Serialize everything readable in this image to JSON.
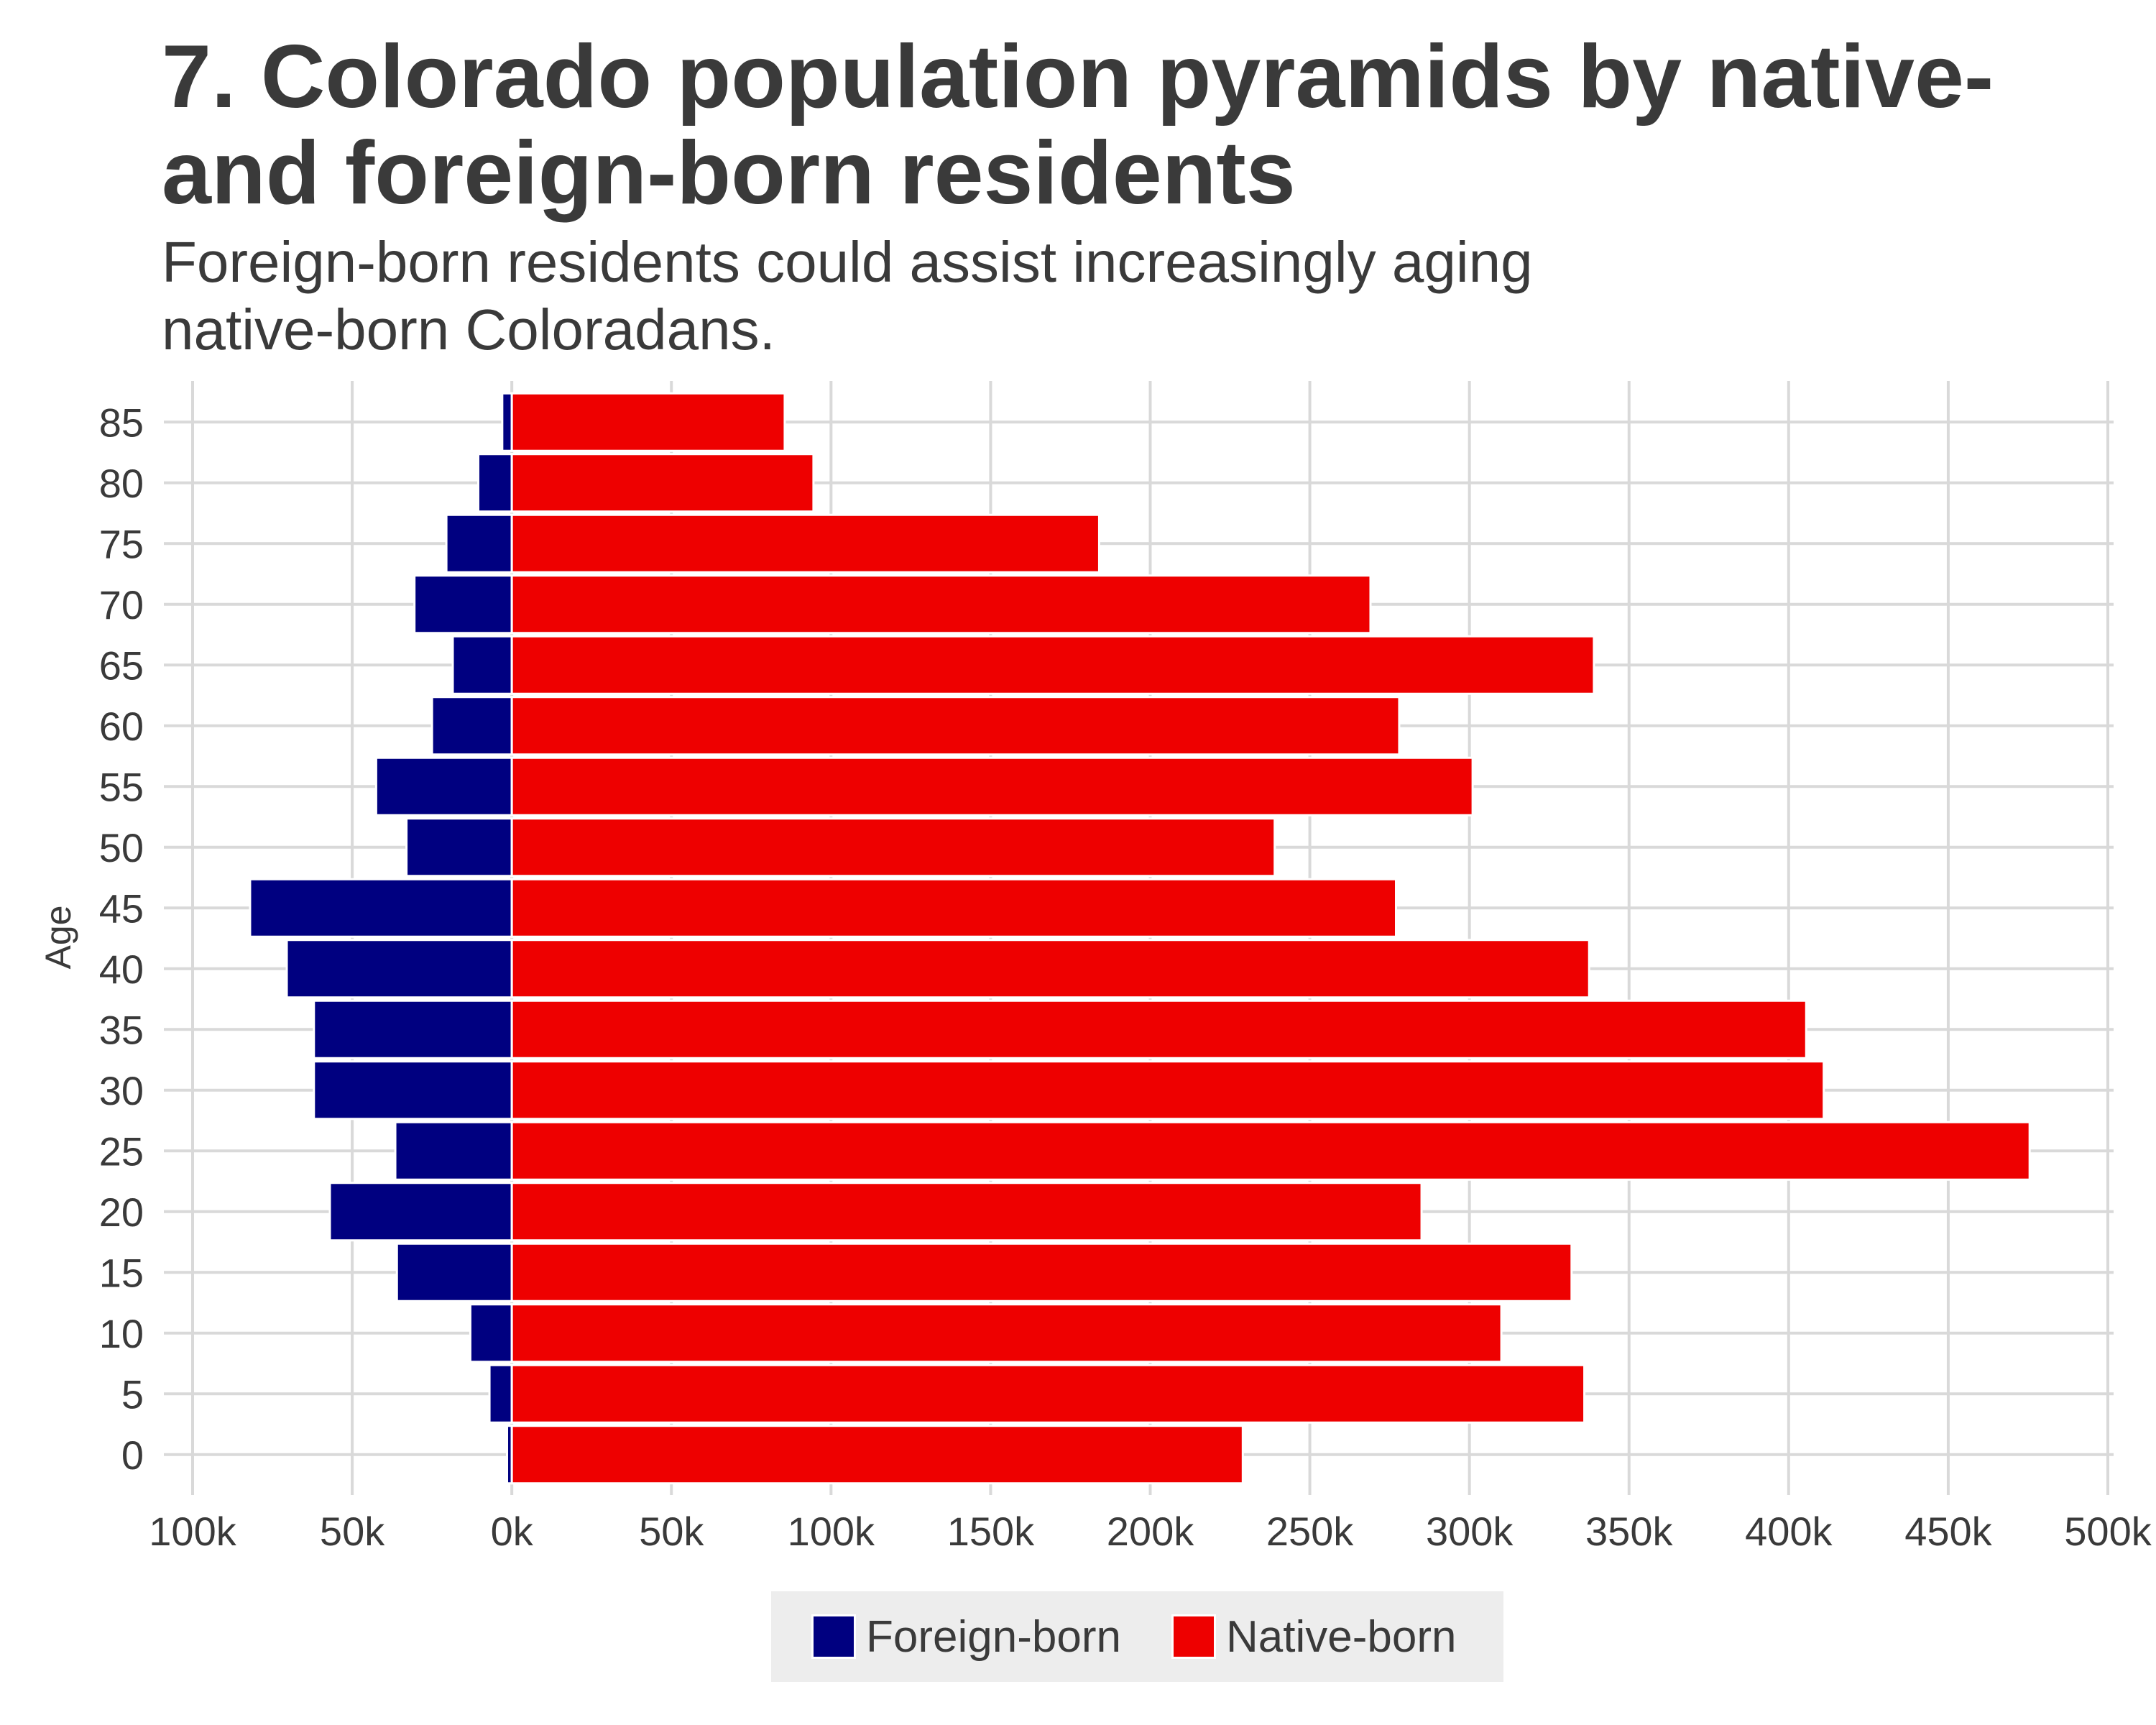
{
  "title": "7. Colorado population pyramids by native- and foreign-born residents",
  "subtitle": "Foreign-born residents could assist increasingly aging native-born Coloradans.",
  "colors": {
    "foreign": "#000080",
    "native": "#ee0000",
    "grid": "#d9d9d9",
    "legend_bg": "#ededed"
  },
  "legend": [
    {
      "name": "Foreign-born",
      "color": "#000080"
    },
    {
      "name": "Native-born",
      "color": "#ee0000"
    }
  ],
  "chart_data": {
    "type": "bar",
    "orientation": "horizontal",
    "ylabel": "Age",
    "xlabel": "",
    "xlim": [
      -100000,
      500000
    ],
    "x_ticks": [
      -100000,
      -50000,
      0,
      50000,
      100000,
      150000,
      200000,
      250000,
      300000,
      350000,
      400000,
      450000,
      500000
    ],
    "x_tick_labels": [
      "100k",
      "50k",
      "0k",
      "50k",
      "100k",
      "150k",
      "200k",
      "250k",
      "300k",
      "350k",
      "400k",
      "450k",
      "500k"
    ],
    "categories": [
      "0",
      "5",
      "10",
      "15",
      "20",
      "25",
      "30",
      "35",
      "40",
      "45",
      "50",
      "55",
      "60",
      "65",
      "70",
      "75",
      "80",
      "85"
    ],
    "series": [
      {
        "name": "Foreign-born",
        "values": [
          -1500,
          -7000,
          -13000,
          -36000,
          -57000,
          -36500,
          -62000,
          -62000,
          -70500,
          -82000,
          -33000,
          -42500,
          -25000,
          -18500,
          -30500,
          -20500,
          -10500,
          -3000
        ]
      },
      {
        "name": "Native-born",
        "values": [
          229000,
          336000,
          310000,
          332000,
          285000,
          475500,
          411000,
          405500,
          337500,
          277000,
          239000,
          301000,
          278000,
          339000,
          269000,
          184000,
          94500,
          85500
        ]
      }
    ],
    "grid": true,
    "legend_position": "bottom"
  }
}
